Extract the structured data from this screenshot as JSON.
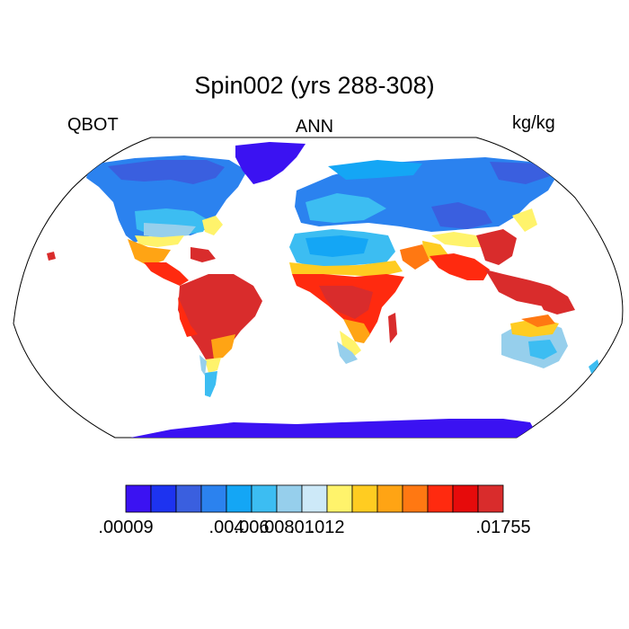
{
  "map": {
    "title": "Spin002 (yrs 288-308)",
    "variable_label": "QBOT",
    "season_label": "ANN",
    "units_label": "kg/kg",
    "projection": "robinson",
    "coastlines": true,
    "ocean_color": "#ffffff"
  },
  "colorbar": {
    "colors": [
      "#3b12f2",
      "#1d33f0",
      "#3a5fdf",
      "#2b82ef",
      "#14a6f5",
      "#3cbdf2",
      "#96cfec",
      "#cde9f8",
      "#fff36b",
      "#ffcc21",
      "#ffa414",
      "#ff7812",
      "#ff2a0f",
      "#e60b0b",
      "#d92c2c"
    ],
    "labels": [
      ".00009",
      ".004",
      ".006",
      ".008",
      ".01",
      ".012",
      ".01755"
    ],
    "label_boundaries": [
      0,
      4,
      5,
      6,
      7,
      8,
      10
    ]
  }
}
